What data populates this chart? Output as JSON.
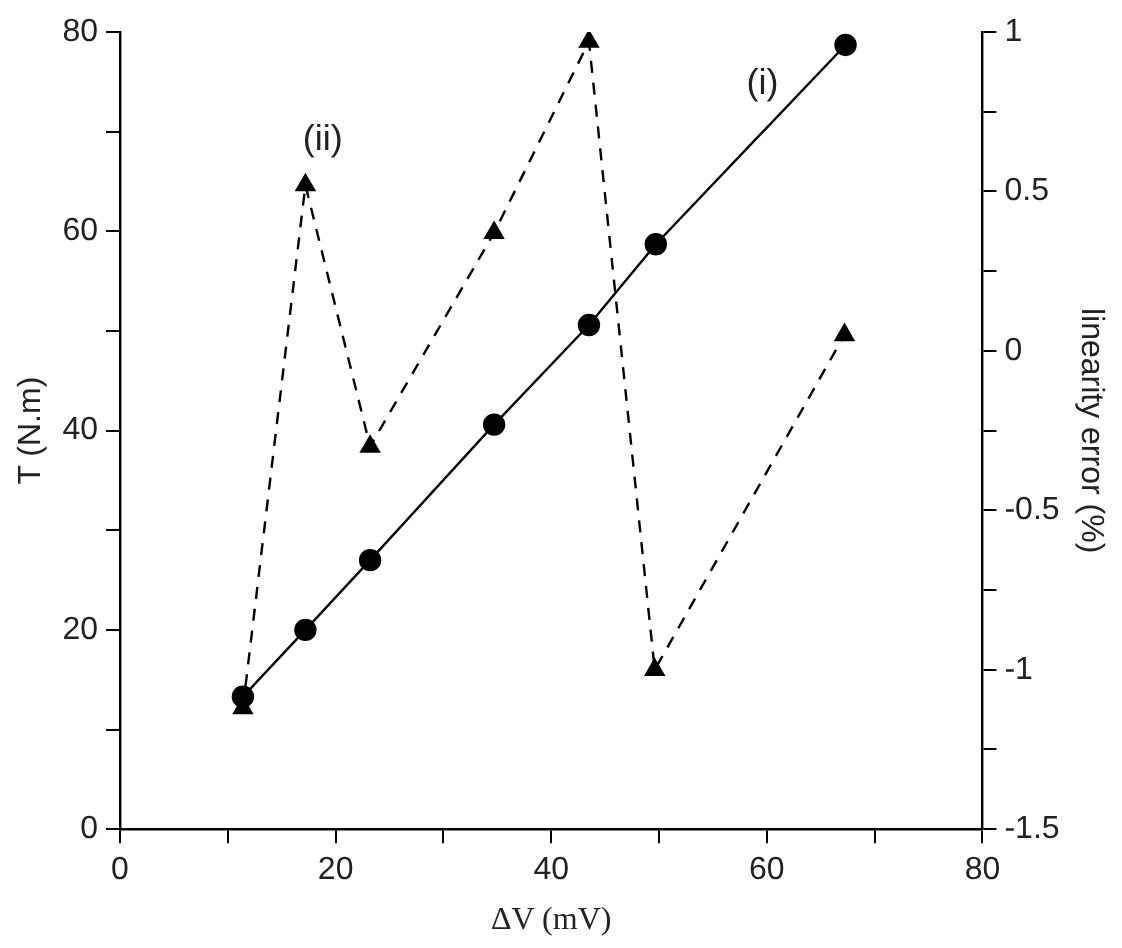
{
  "chart_data": {
    "type": "line",
    "xlabel": "ΔV (mV)",
    "ylabel": "T (N.m)",
    "y2label": "linearity error (%)",
    "x": [
      11.4,
      17.2,
      23.2,
      34.7,
      43.5,
      49.7,
      67.3
    ],
    "series": [
      {
        "color": "#000000",
        "marker": "circle",
        "line_style": "solid",
        "values": [
          13.3,
          20,
          27,
          40.6,
          50.6,
          58.7,
          78.7
        ]
      },
      {
        "color": "#000000",
        "marker": "triangle",
        "line_style": "dashed",
        "axis": "y2",
        "x": [
          11.4,
          17.2,
          23.2,
          34.7,
          43.5,
          49.6,
          67.2
        ],
        "values": [
          -1.12,
          0.52,
          -0.3,
          0.37,
          0.97,
          -1.0,
          0.05
        ]
      }
    ],
    "xlim": [
      0,
      80
    ],
    "xticks": [
      0,
      {
        "value": 10,
        "label": null
      },
      20,
      {
        "value": 30,
        "label": null
      },
      40,
      {
        "value": 50,
        "label": null
      },
      60,
      {
        "value": 70,
        "label": null
      },
      80
    ],
    "ylim": [
      0,
      80
    ],
    "yticks": [
      0,
      {
        "value": 10,
        "label": null
      },
      20,
      {
        "value": 30,
        "label": null
      },
      40,
      {
        "value": 50,
        "label": null
      },
      60,
      {
        "value": 70,
        "label": null
      },
      80
    ],
    "y2lim": [
      -1.5,
      1
    ],
    "y2ticks": [
      -1.5,
      {
        "value": -1.25,
        "label": null
      },
      -1,
      {
        "value": -0.75,
        "label": null
      },
      -0.5,
      {
        "value": -0.25,
        "label": null
      },
      0,
      {
        "value": 0.25,
        "label": null
      },
      0.5,
      {
        "value": 0.75,
        "label": null
      },
      1
    ],
    "annotations": [
      "(i)",
      "(ii)"
    ],
    "grid": false,
    "legend": false
  }
}
